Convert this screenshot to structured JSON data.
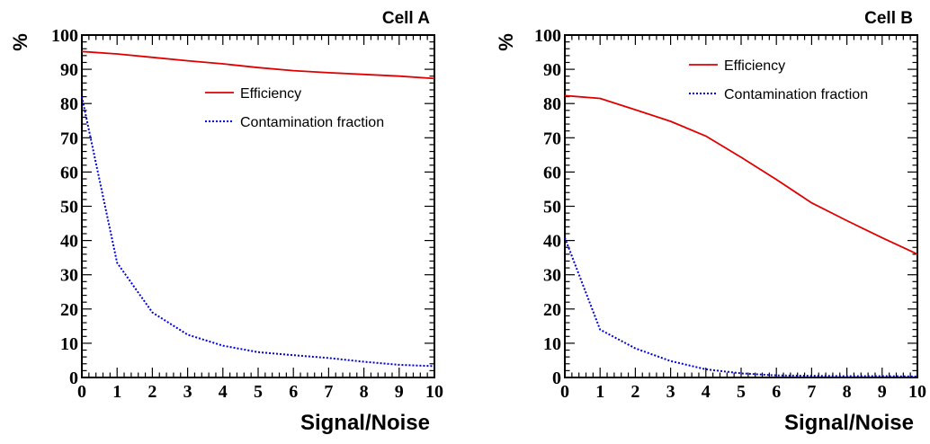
{
  "chart_data": [
    {
      "type": "line",
      "title": "Cell A",
      "xlabel": "Signal/Noise",
      "ylabel": "%",
      "xlim": [
        0,
        10
      ],
      "ylim": [
        0,
        100
      ],
      "x_ticks": [
        "0",
        "1",
        "2",
        "3",
        "4",
        "5",
        "6",
        "7",
        "8",
        "9",
        "10"
      ],
      "y_ticks": [
        "0",
        "10",
        "20",
        "30",
        "40",
        "50",
        "60",
        "70",
        "80",
        "90",
        "100"
      ],
      "grid": false,
      "legend_position": "upper-right",
      "series": [
        {
          "name": "Efficiency",
          "color": "#e00000",
          "style": "solid",
          "x": [
            0,
            1,
            2,
            3,
            4,
            5,
            6,
            7,
            8,
            9,
            10
          ],
          "y": [
            95.2,
            94.5,
            93.5,
            92.5,
            91.6,
            90.5,
            89.6,
            89.0,
            88.5,
            88.0,
            87.3
          ]
        },
        {
          "name": "Contamination fraction",
          "color": "#0000e0",
          "style": "dotted",
          "x": [
            0,
            1,
            2,
            3,
            4,
            5,
            6,
            7,
            8,
            9,
            10
          ],
          "y": [
            82.0,
            33.5,
            19.0,
            12.5,
            9.3,
            7.4,
            6.5,
            5.7,
            4.6,
            3.7,
            3.3
          ]
        }
      ]
    },
    {
      "type": "line",
      "title": "Cell B",
      "xlabel": "Signal/Noise",
      "ylabel": "%",
      "xlim": [
        0,
        10
      ],
      "ylim": [
        0,
        100
      ],
      "x_ticks": [
        "0",
        "1",
        "2",
        "3",
        "4",
        "5",
        "6",
        "7",
        "8",
        "9",
        "10"
      ],
      "y_ticks": [
        "0",
        "10",
        "20",
        "30",
        "40",
        "50",
        "60",
        "70",
        "80",
        "90",
        "100"
      ],
      "grid": false,
      "legend_position": "upper-right",
      "series": [
        {
          "name": "Efficiency",
          "color": "#e00000",
          "style": "solid",
          "x": [
            0,
            1,
            2,
            3,
            4,
            5,
            6,
            7,
            8,
            9,
            10
          ],
          "y": [
            82.3,
            81.5,
            78.2,
            74.8,
            70.5,
            64.3,
            57.8,
            51.0,
            45.8,
            40.8,
            36.0
          ]
        },
        {
          "name": "Contamination fraction",
          "color": "#0000e0",
          "style": "dotted",
          "x": [
            0,
            1,
            2,
            3,
            4,
            5,
            6,
            7,
            8,
            9,
            10
          ],
          "y": [
            40.8,
            14.0,
            8.5,
            4.8,
            2.4,
            1.2,
            0.6,
            0.5,
            0.4,
            0.4,
            0.3
          ]
        }
      ]
    }
  ]
}
